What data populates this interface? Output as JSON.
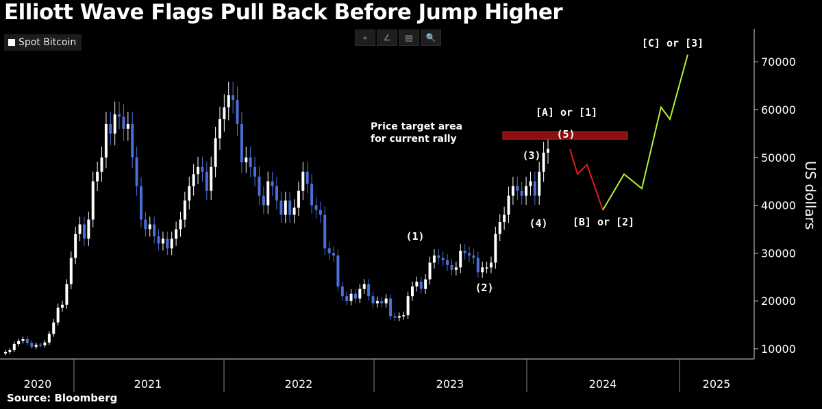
{
  "title": "Elliott Wave Flags Pull Back Before Jump Higher",
  "legend": {
    "label": "Spot Bitcoin"
  },
  "source": "Source: Bloomberg",
  "toolbar": [
    {
      "icon": "crosshair-icon",
      "glyph": "⌖"
    },
    {
      "icon": "draw-line-icon",
      "glyph": "∠"
    },
    {
      "icon": "table-icon",
      "glyph": "▤"
    },
    {
      "icon": "zoom-icon",
      "glyph": "🔍"
    }
  ],
  "chart_data": {
    "type": "candlestick",
    "ylabel": "US dollars",
    "ylim": [
      7000,
      74000
    ],
    "yticks": [
      10000,
      20000,
      30000,
      40000,
      50000,
      60000,
      70000
    ],
    "ytick_labels": [
      "10000",
      "20000",
      "30000",
      "40000",
      "50000",
      "60000",
      "70000"
    ],
    "xtick_labels": [
      "2020",
      "2021",
      "2022",
      "2023",
      "2024",
      "2025"
    ],
    "colors": {
      "up": "#ffffff",
      "down": "#4a6fd8",
      "bearish_path": "#e01e1e",
      "bullish_path": "#b5f23c",
      "target_zone": "#8b1111"
    },
    "series": [
      {
        "values": [
          9300,
          9700,
          11000,
          11600,
          12000,
          11200,
          10400,
          10800,
          10700,
          11300,
          13100,
          15500,
          18600,
          19200,
          23500,
          29000,
          34000,
          36000,
          33000,
          37000,
          45000,
          47000,
          50000,
          57000,
          55000,
          59000,
          58500,
          56000,
          57000,
          50000,
          44000,
          37000,
          35000,
          36000,
          33500,
          32000,
          33000,
          31000,
          33000,
          35000,
          37000,
          41000,
          44000,
          46500,
          48000,
          47000,
          43000,
          48000,
          54000,
          58000,
          60500,
          63000,
          62000,
          57000,
          49000,
          50000,
          48000,
          46000,
          42000,
          40000,
          45000,
          44000,
          41000,
          38000,
          41000,
          38000,
          39500,
          43000,
          47000,
          44500,
          40000,
          39000,
          38000,
          31000,
          30000,
          29500,
          23000,
          21000,
          20000,
          21500,
          20500,
          22500,
          23500,
          21000,
          19500,
          20000,
          19500,
          20500,
          16800,
          16500,
          16800,
          17000,
          21000,
          23000,
          24000,
          22500,
          24500,
          28000,
          29500,
          29000,
          28500,
          27500,
          26500,
          27000,
          30500,
          30000,
          29500,
          29000,
          26000,
          27000,
          27000,
          28000,
          34000,
          36500,
          38000,
          42000,
          44000,
          43000,
          42000,
          44000,
          45000,
          42000,
          47000,
          51000,
          51800
        ]
      }
    ],
    "projection": {
      "bearish": [
        51800,
        46500,
        48500,
        39000
      ],
      "bullish": [
        39000,
        46500,
        43500,
        60500,
        58000,
        71500
      ]
    },
    "target_zone": [
      53800,
      55400
    ],
    "annotations": {
      "target": [
        "Price target area",
        "for current rally"
      ],
      "w1": "(1)",
      "w2": "(2)",
      "w3": "(3)",
      "w4": "(4)",
      "w5": "(5)",
      "wa": "[A] or [1]",
      "wb": "[B] or [2]",
      "wc": "[C] or [3]"
    }
  }
}
